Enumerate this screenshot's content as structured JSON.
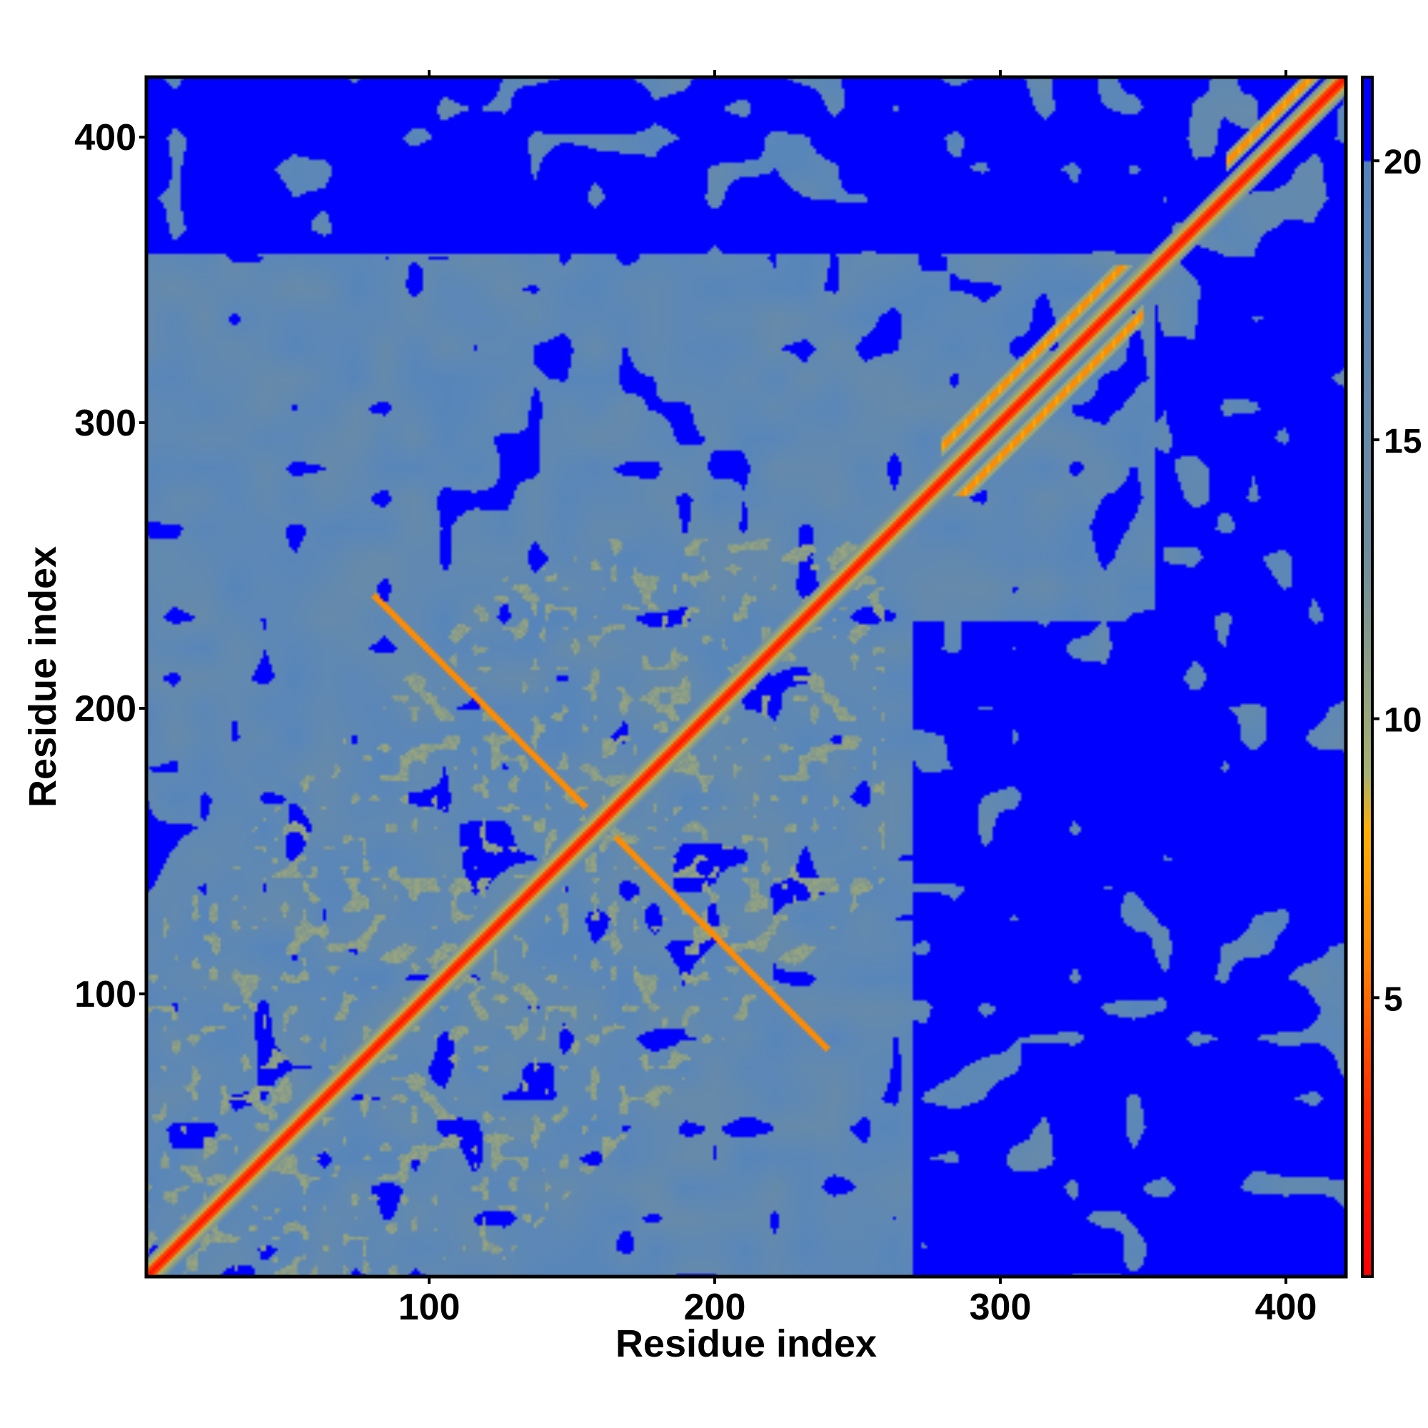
{
  "chart_data": {
    "type": "heatmap",
    "title": "",
    "xlabel": "Residue index",
    "ylabel": "Residue index",
    "xlim": [
      1,
      421
    ],
    "ylim": [
      1,
      421
    ],
    "x_ticks": [
      100,
      200,
      300,
      400
    ],
    "y_ticks": [
      100,
      200,
      300,
      400
    ],
    "x_tick_labels": [
      "100",
      "200",
      "300",
      "400"
    ],
    "y_tick_labels": [
      "100",
      "200",
      "300",
      "400"
    ],
    "n_residues": 421,
    "grid": false,
    "legend": "right",
    "colorbar": {
      "range": [
        0,
        21.5
      ],
      "ticks": [
        5,
        10,
        15,
        20
      ],
      "tick_labels": [
        "5",
        "10",
        "15",
        "20"
      ],
      "stops": [
        {
          "value": 0,
          "color": "#ff0000"
        },
        {
          "value": 3,
          "color": "#ff2a00"
        },
        {
          "value": 6,
          "color": "#ff8c00"
        },
        {
          "value": 8,
          "color": "#ffb000"
        },
        {
          "value": 9,
          "color": "#a8b070"
        },
        {
          "value": 13,
          "color": "#6f8c9e"
        },
        {
          "value": 18,
          "color": "#5b87b8"
        },
        {
          "value": 20,
          "color": "#5283bd"
        },
        {
          "value": 20.01,
          "color": "#0000ff"
        },
        {
          "value": 21.5,
          "color": "#0000ff"
        }
      ]
    },
    "description_values": {
      "diagonal_distance": 3.8,
      "background_distance": 17,
      "far_distance": 21,
      "far_blocks": [
        {
          "x_range": [
            355,
            421
          ],
          "y_range": [
            1,
            360
          ]
        },
        {
          "x_range": [
            1,
            421
          ],
          "y_range": [
            360,
            421
          ]
        },
        {
          "x_range": [
            270,
            355
          ],
          "y_range": [
            1,
            230
          ]
        }
      ],
      "secondary_contacts": [
        {
          "x_range": [
            280,
            350
          ],
          "y_range": [
            285,
            355
          ],
          "offset": 12
        },
        {
          "x_range": [
            280,
            350
          ],
          "y_range": [
            275,
            345
          ],
          "offset": -12
        },
        {
          "x_range": [
            380,
            421
          ],
          "y_range": [
            385,
            421
          ],
          "offset": 12
        }
      ]
    }
  }
}
